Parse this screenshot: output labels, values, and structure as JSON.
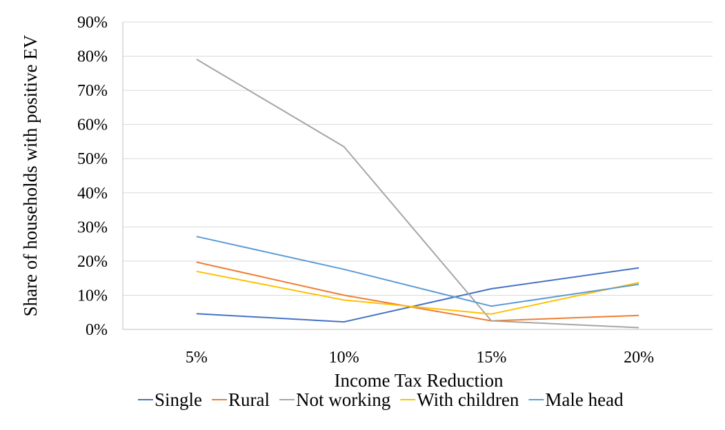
{
  "chart_data": {
    "type": "line",
    "title": "",
    "xlabel": "Income Tax Reduction",
    "ylabel": "Share of households with positive EV",
    "categories": [
      "5%",
      "10%",
      "15%",
      "20%"
    ],
    "ylim": [
      0,
      0.9
    ],
    "yticks": [
      0,
      0.1,
      0.2,
      0.3,
      0.4,
      0.5,
      0.6,
      0.7,
      0.8,
      0.9
    ],
    "ytick_labels": [
      "0%",
      "10%",
      "20%",
      "30%",
      "40%",
      "50%",
      "60%",
      "70%",
      "80%",
      "90%"
    ],
    "grid": "horizontal",
    "legend_position": "bottom",
    "series": [
      {
        "name": "Single",
        "color": "#4472C4",
        "values": [
          0.046,
          0.022,
          0.119,
          0.18
        ]
      },
      {
        "name": "Rural",
        "color": "#ED7D31",
        "values": [
          0.197,
          0.1,
          0.025,
          0.041
        ]
      },
      {
        "name": "Not working",
        "color": "#A5A5A5",
        "values": [
          0.791,
          0.535,
          0.025,
          0.005
        ]
      },
      {
        "name": "With children",
        "color": "#FFC000",
        "values": [
          0.17,
          0.086,
          0.045,
          0.137
        ]
      },
      {
        "name": "Male head",
        "color": "#5B9BD5",
        "values": [
          0.272,
          0.176,
          0.068,
          0.132
        ]
      }
    ]
  }
}
